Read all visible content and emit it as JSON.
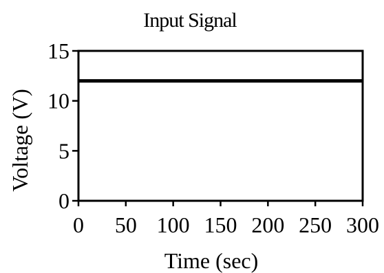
{
  "chart_data": {
    "type": "line",
    "title": "Input Signal",
    "xlabel": "Time (sec)",
    "ylabel": "Voltage (V)",
    "xlim": [
      0,
      300
    ],
    "ylim": [
      0,
      15
    ],
    "x_ticks": [
      0,
      50,
      100,
      150,
      200,
      250,
      300
    ],
    "y_ticks": [
      0,
      5,
      10,
      15
    ],
    "x_tick_labels": [
      "0",
      "50",
      "100",
      "150",
      "200",
      "250",
      "300"
    ],
    "y_tick_labels": [
      "0",
      "5",
      "10",
      "15"
    ],
    "grid": false,
    "series": [
      {
        "x": [
          0,
          300
        ],
        "values": [
          12,
          12
        ],
        "color": "#000000"
      }
    ]
  }
}
